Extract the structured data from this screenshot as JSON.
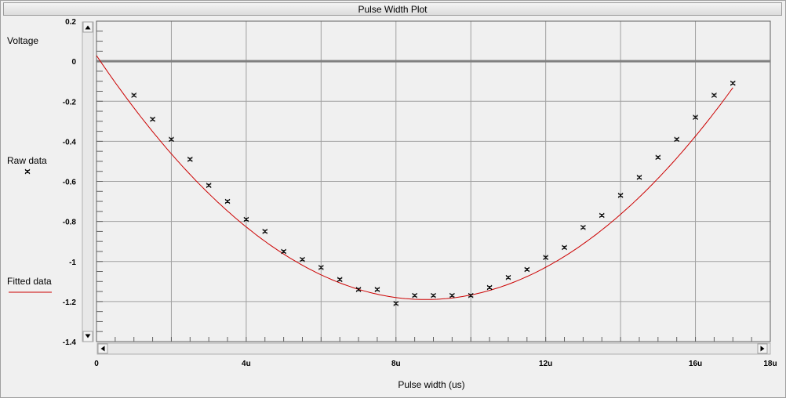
{
  "window": {
    "title": "Pulse Width Plot"
  },
  "legend": {
    "y_axis_label": "Voltage",
    "raw_label": "Raw data",
    "fit_label": "Fitted data"
  },
  "colors": {
    "fit_line": "#cc0000",
    "zero_line": "#808080",
    "grid": "#a0a0a0",
    "plot_bg": "#f0f0f0",
    "marker": "#000000"
  },
  "chart_data": {
    "type": "scatter",
    "title": "Pulse Width Plot",
    "xlabel": "Pulse width (us)",
    "ylabel": "Voltage",
    "xlim": [
      0,
      18
    ],
    "ylim": [
      -1.4,
      0.2
    ],
    "x_ticks": [
      {
        "value": 0,
        "label": "0"
      },
      {
        "value": 4,
        "label": "4u"
      },
      {
        "value": 8,
        "label": "8u"
      },
      {
        "value": 12,
        "label": "12u"
      },
      {
        "value": 16,
        "label": "16u"
      },
      {
        "value": 18,
        "label": "18u"
      }
    ],
    "y_ticks": [
      {
        "value": 0.2,
        "label": "0.2"
      },
      {
        "value": 0,
        "label": "0"
      },
      {
        "value": -0.2,
        "label": "-0.2"
      },
      {
        "value": -0.4,
        "label": "-0.4"
      },
      {
        "value": -0.6,
        "label": "-0.6"
      },
      {
        "value": -0.8,
        "label": "-0.8"
      },
      {
        "value": -1.0,
        "label": "-1"
      },
      {
        "value": -1.2,
        "label": "-1.2"
      },
      {
        "value": -1.4,
        "label": "-1.4"
      }
    ],
    "grid": true,
    "series": [
      {
        "name": "Raw data",
        "type": "scatter",
        "x": [
          1,
          1.5,
          2,
          2.5,
          3,
          3.5,
          4,
          4.5,
          5,
          5.5,
          6,
          6.5,
          7,
          7.5,
          8,
          8.5,
          9,
          9.5,
          10,
          10.5,
          11,
          11.5,
          12,
          12.5,
          13,
          13.5,
          14,
          14.5,
          15,
          15.5,
          16,
          16.5,
          17
        ],
        "y": [
          -0.17,
          -0.29,
          -0.39,
          -0.49,
          -0.62,
          -0.7,
          -0.79,
          -0.85,
          -0.95,
          -0.99,
          -1.03,
          -1.09,
          -1.14,
          -1.14,
          -1.21,
          -1.17,
          -1.17,
          -1.17,
          -1.17,
          -1.13,
          -1.08,
          -1.04,
          -0.98,
          -0.93,
          -0.83,
          -0.77,
          -0.67,
          -0.58,
          -0.48,
          -0.39,
          -0.28,
          -0.17,
          -0.11
        ]
      },
      {
        "name": "Fitted data",
        "type": "line",
        "fit": {
          "kind": "quadratic",
          "vertex_x": 8.8,
          "vertex_y": -1.19,
          "curvature": 0.01573
        },
        "x_range": [
          0,
          17
        ]
      }
    ],
    "reference_lines": [
      {
        "axis": "y",
        "value": 0
      }
    ]
  }
}
